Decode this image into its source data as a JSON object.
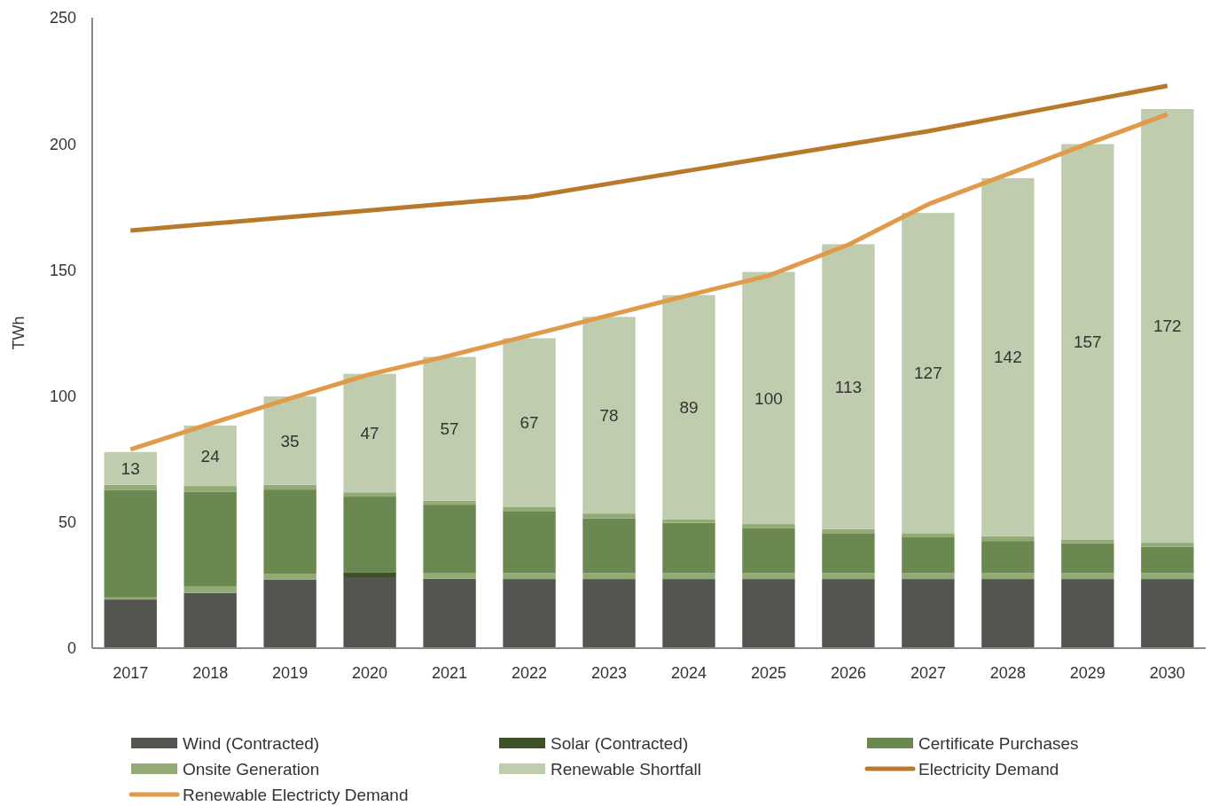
{
  "chart_data": {
    "type": "bar",
    "stacked": true,
    "ylabel": "TWh",
    "categories": [
      "2017",
      "2018",
      "2019",
      "2020",
      "2021",
      "2022",
      "2023",
      "2024",
      "2025",
      "2026",
      "2027",
      "2028",
      "2029",
      "2030"
    ],
    "ylim": [
      0,
      250
    ],
    "yticks": [
      0,
      50,
      100,
      150,
      200,
      250
    ],
    "grid": false,
    "legend": "bottom",
    "series": [
      {
        "name": "Wind (Contracted)",
        "color": "#545550",
        "values": [
          19.3,
          21.9,
          27.1,
          27.8,
          27.5,
          27.4,
          27.4,
          27.4,
          27.4,
          27.4,
          27.4,
          27.4,
          27.4,
          27.4
        ]
      },
      {
        "name": "Solar (Contracted)",
        "color": "#3e5229",
        "values": [
          0,
          0,
          0,
          2.1,
          0,
          0,
          0,
          0,
          0,
          0,
          0,
          0,
          0,
          0
        ]
      },
      {
        "color": "#92ab75",
        "values": [
          0.8,
          2.5,
          2.4,
          0,
          2.4,
          2.4,
          2.4,
          2.4,
          2.4,
          2.4,
          2.4,
          2.4,
          2.4,
          2.4
        ]
      },
      {
        "name": "Certificate Purchases",
        "color": "#6b8850",
        "values": [
          42.6,
          37.7,
          33.4,
          30.2,
          27.0,
          24.6,
          21.7,
          19.9,
          17.7,
          15.8,
          14.4,
          12.7,
          11.8,
          10.4
        ]
      },
      {
        "name": "Onsite Generation",
        "color": "#92ab75",
        "values": [
          2.1,
          2.2,
          1.9,
          1.7,
          1.6,
          1.5,
          1.9,
          1.3,
          1.7,
          1.6,
          1.4,
          1.9,
          1.3,
          1.6
        ]
      },
      {
        "name": "Renewable Shortfall",
        "color": "#bfcdae",
        "values": [
          13,
          24,
          35,
          47,
          57,
          67,
          78,
          89,
          100,
          113,
          127,
          142,
          157,
          172
        ],
        "value_labels": [
          "13",
          "24",
          "35",
          "47",
          "57",
          "67",
          "78",
          "89",
          "100",
          "113",
          "127",
          "142",
          "157",
          "172"
        ]
      },
      {
        "name": "Electricity Demand",
        "type": "line",
        "color": "#b87a2a",
        "values": [
          165.6,
          168.3,
          171,
          173.6,
          176.3,
          179,
          184.2,
          189.4,
          194.6,
          199.8,
          205,
          211,
          217,
          223
        ]
      },
      {
        "name": "Renewable Electricty Demand",
        "type": "line",
        "color": "#e09a4a",
        "values": [
          78.8,
          89,
          99,
          108.6,
          116,
          124,
          132,
          140,
          147.7,
          160,
          176,
          188,
          200,
          211.7
        ]
      }
    ]
  }
}
